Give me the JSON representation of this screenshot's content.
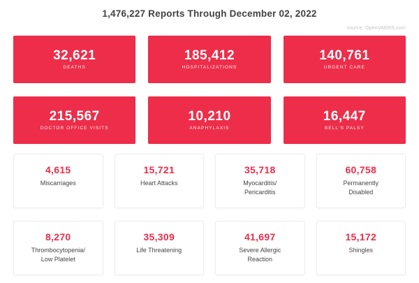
{
  "header": {
    "title": "1,476,227 Reports Through December 02, 2022",
    "source": "source: OpenVAERS.com"
  },
  "red_cards": [
    {
      "value": "32,621",
      "label": "DEATHS"
    },
    {
      "value": "185,412",
      "label": "HOSPITALIZATIONS"
    },
    {
      "value": "140,761",
      "label": "URGENT CARE"
    },
    {
      "value": "215,567",
      "label": "DOCTOR OFFICE VISITS"
    },
    {
      "value": "10,210",
      "label": "ANAPHYLAXIS"
    },
    {
      "value": "16,447",
      "label": "BELL'S PALSY"
    }
  ],
  "white_cards": [
    {
      "value": "4,615",
      "label": "Miscarriages"
    },
    {
      "value": "15,721",
      "label": "Heart Attacks"
    },
    {
      "value": "35,718",
      "label": "Myocarditis/\nPericarditis"
    },
    {
      "value": "60,758",
      "label": "Permanently\nDisabled"
    },
    {
      "value": "8,270",
      "label": "Thrombocytopenia/\nLow Platelet"
    },
    {
      "value": "35,309",
      "label": "Life Threatening"
    },
    {
      "value": "41,697",
      "label": "Severe Allergic\nReaction"
    },
    {
      "value": "15,172",
      "label": "Shingles"
    }
  ],
  "colors": {
    "accent_red": "#ED2D49",
    "card_border": "#ECECEC",
    "title_text": "#414141",
    "label_text": "#454545",
    "source_text": "#C2C2C2"
  }
}
